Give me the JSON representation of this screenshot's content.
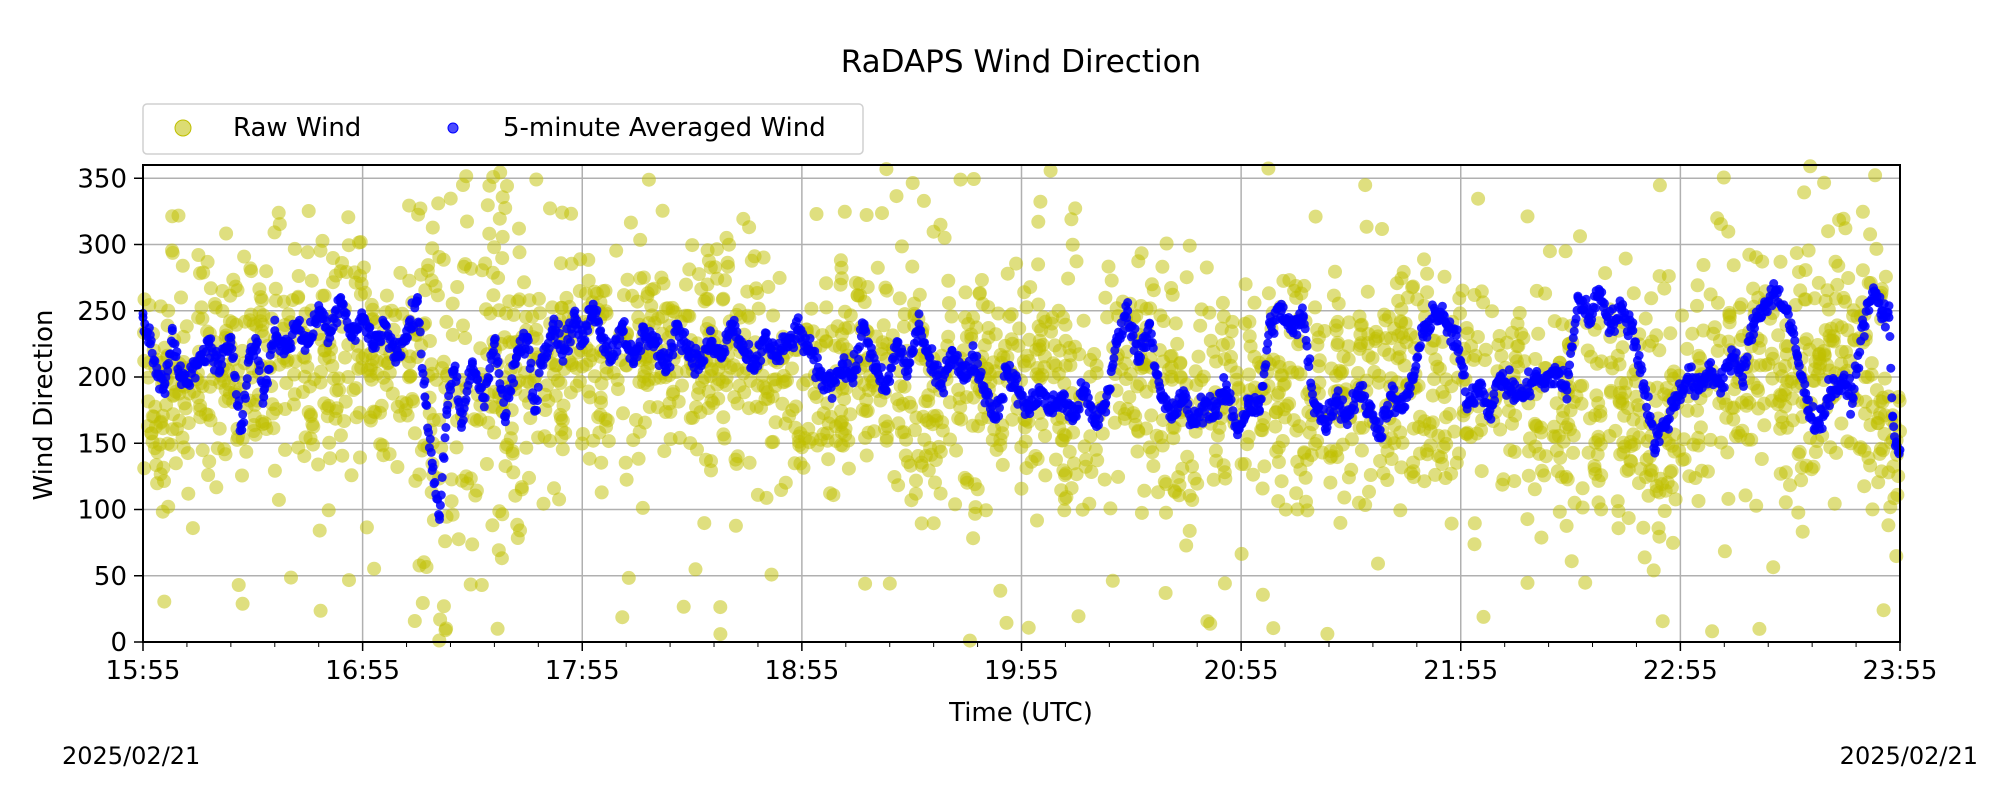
{
  "chart_data": {
    "type": "scatter",
    "title": "RaDAPS Wind Direction",
    "xlabel": "Time (UTC)",
    "ylabel": "Wind Direction",
    "xlim": [
      "15:55",
      "23:55"
    ],
    "ylim": [
      0,
      360
    ],
    "x_ticks": [
      "15:55",
      "16:55",
      "17:55",
      "18:55",
      "19:55",
      "20:55",
      "21:55",
      "22:55",
      "23:55"
    ],
    "y_ticks": [
      0,
      50,
      100,
      150,
      200,
      250,
      300,
      350
    ],
    "grid": true,
    "legend": {
      "placement": "top-left, above plot",
      "columns": 2
    },
    "series": [
      {
        "name": "Raw Wind",
        "color": "#bfbf00",
        "marker": "circle",
        "opacity": 0.5,
        "description_points": [
          [
            "15:55",
            190
          ],
          [
            "16:10",
            200
          ],
          [
            "16:25",
            215
          ],
          [
            "16:40",
            210
          ],
          [
            "16:55",
            225
          ],
          [
            "17:10",
            200
          ],
          [
            "17:25",
            190
          ],
          [
            "17:40",
            220
          ],
          [
            "17:55",
            210
          ],
          [
            "18:10",
            220
          ],
          [
            "18:25",
            220
          ],
          [
            "18:40",
            215
          ],
          [
            "18:55",
            190
          ],
          [
            "19:10",
            200
          ],
          [
            "19:25",
            185
          ],
          [
            "19:40",
            175
          ],
          [
            "19:55",
            205
          ],
          [
            "20:10",
            175
          ],
          [
            "20:25",
            200
          ],
          [
            "20:40",
            180
          ],
          [
            "20:55",
            190
          ],
          [
            "21:10",
            190
          ],
          [
            "21:25",
            185
          ],
          [
            "21:40",
            200
          ],
          [
            "21:55",
            185
          ],
          [
            "22:10",
            200
          ],
          [
            "22:25",
            180
          ],
          [
            "22:40",
            175
          ],
          [
            "22:55",
            190
          ],
          [
            "23:10",
            210
          ],
          [
            "23:25",
            195
          ],
          [
            "23:40",
            230
          ],
          [
            "23:55",
            150
          ]
        ]
      },
      {
        "name": "5-minute Averaged Wind",
        "color": "#0000ff",
        "marker": "circle",
        "opacity": 0.7,
        "values": [
          [
            "15:55",
            245
          ],
          [
            "15:57",
            225
          ],
          [
            "15:59",
            200
          ],
          [
            "16:01",
            195
          ],
          [
            "16:03",
            235
          ],
          [
            "16:05",
            200
          ],
          [
            "16:07",
            195
          ],
          [
            "16:10",
            210
          ],
          [
            "16:13",
            225
          ],
          [
            "16:16",
            205
          ],
          [
            "16:19",
            230
          ],
          [
            "16:22",
            160
          ],
          [
            "16:24",
            215
          ],
          [
            "16:26",
            225
          ],
          [
            "16:28",
            185
          ],
          [
            "16:31",
            235
          ],
          [
            "16:34",
            220
          ],
          [
            "16:37",
            240
          ],
          [
            "16:40",
            225
          ],
          [
            "16:43",
            250
          ],
          [
            "16:46",
            235
          ],
          [
            "16:49",
            260
          ],
          [
            "16:52",
            230
          ],
          [
            "16:55",
            245
          ],
          [
            "16:58",
            225
          ],
          [
            "17:01",
            240
          ],
          [
            "17:04",
            215
          ],
          [
            "17:07",
            230
          ],
          [
            "17:10",
            260
          ],
          [
            "17:12",
            185
          ],
          [
            "17:14",
            135
          ],
          [
            "17:16",
            95
          ],
          [
            "17:18",
            175
          ],
          [
            "17:20",
            205
          ],
          [
            "17:22",
            165
          ],
          [
            "17:25",
            210
          ],
          [
            "17:28",
            185
          ],
          [
            "17:31",
            225
          ],
          [
            "17:34",
            170
          ],
          [
            "17:37",
            215
          ],
          [
            "17:40",
            230
          ],
          [
            "17:42",
            175
          ],
          [
            "17:44",
            215
          ],
          [
            "17:47",
            240
          ],
          [
            "17:50",
            220
          ],
          [
            "17:53",
            245
          ],
          [
            "17:55",
            225
          ],
          [
            "17:58",
            255
          ],
          [
            "18:00",
            235
          ],
          [
            "18:03",
            215
          ],
          [
            "18:06",
            240
          ],
          [
            "18:09",
            210
          ],
          [
            "18:12",
            235
          ],
          [
            "18:15",
            225
          ],
          [
            "18:18",
            205
          ],
          [
            "18:21",
            240
          ],
          [
            "18:24",
            220
          ],
          [
            "18:27",
            210
          ],
          [
            "18:30",
            225
          ],
          [
            "18:33",
            215
          ],
          [
            "18:36",
            240
          ],
          [
            "18:39",
            220
          ],
          [
            "18:42",
            205
          ],
          [
            "18:45",
            230
          ],
          [
            "18:48",
            215
          ],
          [
            "18:51",
            225
          ],
          [
            "18:54",
            235
          ],
          [
            "18:57",
            220
          ],
          [
            "19:00",
            200
          ],
          [
            "19:03",
            195
          ],
          [
            "19:06",
            210
          ],
          [
            "19:09",
            200
          ],
          [
            "19:12",
            240
          ],
          [
            "19:15",
            205
          ],
          [
            "19:18",
            190
          ],
          [
            "19:21",
            225
          ],
          [
            "19:24",
            205
          ],
          [
            "19:27",
            240
          ],
          [
            "19:30",
            210
          ],
          [
            "19:33",
            195
          ],
          [
            "19:36",
            220
          ],
          [
            "19:39",
            200
          ],
          [
            "19:42",
            215
          ],
          [
            "19:45",
            190
          ],
          [
            "19:48",
            170
          ],
          [
            "19:51",
            205
          ],
          [
            "19:54",
            190
          ],
          [
            "19:57",
            175
          ],
          [
            "20:00",
            190
          ],
          [
            "20:03",
            175
          ],
          [
            "20:06",
            185
          ],
          [
            "20:09",
            170
          ],
          [
            "20:12",
            190
          ],
          [
            "20:15",
            165
          ],
          [
            "20:18",
            180
          ],
          [
            "20:21",
            225
          ],
          [
            "20:24",
            250
          ],
          [
            "20:27",
            215
          ],
          [
            "20:30",
            240
          ],
          [
            "20:33",
            185
          ],
          [
            "20:36",
            170
          ],
          [
            "20:39",
            185
          ],
          [
            "20:42",
            165
          ],
          [
            "20:45",
            180
          ],
          [
            "20:48",
            175
          ],
          [
            "20:51",
            190
          ],
          [
            "20:54",
            160
          ],
          [
            "20:57",
            180
          ],
          [
            "21:00",
            175
          ],
          [
            "21:03",
            240
          ],
          [
            "21:06",
            250
          ],
          [
            "21:09",
            235
          ],
          [
            "21:12",
            245
          ],
          [
            "21:15",
            180
          ],
          [
            "21:18",
            165
          ],
          [
            "21:21",
            185
          ],
          [
            "21:24",
            170
          ],
          [
            "21:27",
            190
          ],
          [
            "21:30",
            175
          ],
          [
            "21:33",
            160
          ],
          [
            "21:36",
            185
          ],
          [
            "21:39",
            175
          ],
          [
            "21:42",
            200
          ],
          [
            "21:45",
            235
          ],
          [
            "21:48",
            250
          ],
          [
            "21:51",
            240
          ],
          [
            "21:54",
            225
          ],
          [
            "21:57",
            180
          ],
          [
            "22:00",
            195
          ],
          [
            "22:03",
            175
          ],
          [
            "22:06",
            200
          ],
          [
            "22:09",
            190
          ],
          [
            "22:12",
            185
          ],
          [
            "22:15",
            200
          ],
          [
            "22:18",
            195
          ],
          [
            "22:21",
            205
          ],
          [
            "22:24",
            190
          ],
          [
            "22:27",
            260
          ],
          [
            "22:30",
            245
          ],
          [
            "22:33",
            265
          ],
          [
            "22:36",
            240
          ],
          [
            "22:39",
            250
          ],
          [
            "22:42",
            235
          ],
          [
            "22:45",
            195
          ],
          [
            "22:48",
            150
          ],
          [
            "22:51",
            165
          ],
          [
            "22:54",
            185
          ],
          [
            "22:57",
            200
          ],
          [
            "23:00",
            190
          ],
          [
            "23:03",
            205
          ],
          [
            "23:06",
            195
          ],
          [
            "23:09",
            215
          ],
          [
            "23:12",
            200
          ],
          [
            "23:15",
            240
          ],
          [
            "23:18",
            255
          ],
          [
            "23:21",
            265
          ],
          [
            "23:24",
            250
          ],
          [
            "23:27",
            215
          ],
          [
            "23:30",
            175
          ],
          [
            "23:33",
            165
          ],
          [
            "23:36",
            190
          ],
          [
            "23:39",
            195
          ],
          [
            "23:42",
            185
          ],
          [
            "23:45",
            240
          ],
          [
            "23:48",
            265
          ],
          [
            "23:50",
            250
          ],
          [
            "23:52",
            245
          ],
          [
            "23:53",
            170
          ],
          [
            "23:54",
            150
          ],
          [
            "23:55",
            145
          ]
        ]
      }
    ]
  },
  "footer": {
    "date_left": "2025/02/21",
    "date_right": "2025/02/21"
  }
}
